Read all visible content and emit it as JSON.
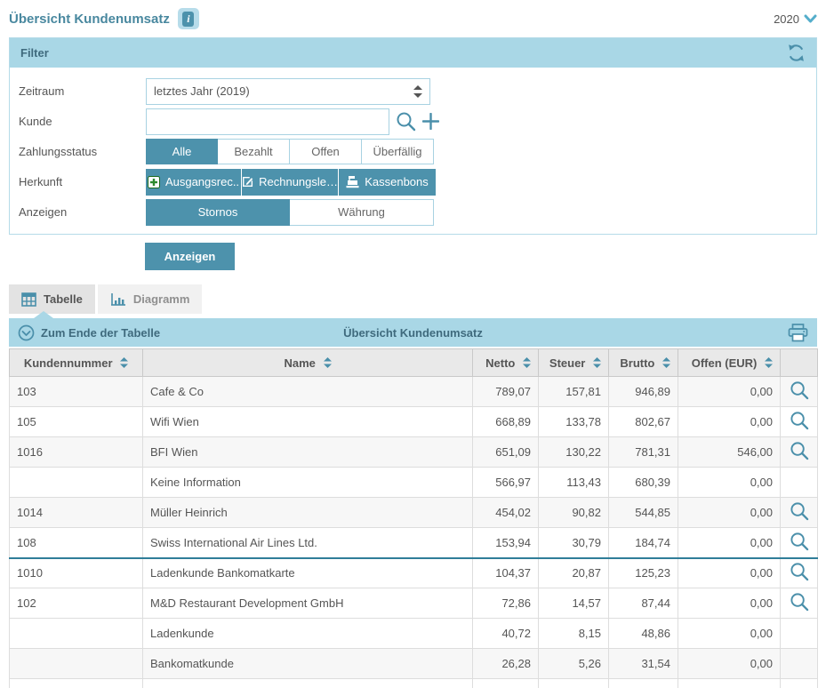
{
  "header": {
    "title": "Übersicht Kundenumsatz",
    "year": "2020"
  },
  "filter": {
    "title": "Filter",
    "zeitraum_label": "Zeitraum",
    "zeitraum_value": "letztes Jahr (2019)",
    "kunde_label": "Kunde",
    "kunde_value": "",
    "zahlungsstatus_label": "Zahlungsstatus",
    "zahlungsstatus_options": [
      "Alle",
      "Bezahlt",
      "Offen",
      "Überfällig"
    ],
    "zahlungsstatus_selected": "Alle",
    "herkunft_label": "Herkunft",
    "herkunft_buttons": [
      "Ausgangsrec..",
      "Rechnungsle…",
      "Kassenbons"
    ],
    "anzeigen_label": "Anzeigen",
    "anzeigen_options": [
      "Stornos",
      "Währung"
    ],
    "anzeigen_selected": "Stornos",
    "submit_label": "Anzeigen"
  },
  "tabs": {
    "tabelle": "Tabelle",
    "diagramm": "Diagramm",
    "active": "Tabelle"
  },
  "table": {
    "jump_to_end_label": "Zum Ende der Tabelle",
    "caption": "Übersicht Kundenumsatz",
    "columns": [
      "Kundennummer",
      "Name",
      "Netto",
      "Steuer",
      "Brutto",
      "Offen (EUR)"
    ],
    "rows": [
      {
        "kundennummer": "103",
        "name": "Cafe & Co",
        "netto": "789,07",
        "steuer": "157,81",
        "brutto": "946,89",
        "offen": "0,00"
      },
      {
        "kundennummer": "105",
        "name": "Wifi Wien",
        "netto": "668,89",
        "steuer": "133,78",
        "brutto": "802,67",
        "offen": "0,00"
      },
      {
        "kundennummer": "1016",
        "name": "BFI Wien",
        "netto": "651,09",
        "steuer": "130,22",
        "brutto": "781,31",
        "offen": "546,00"
      },
      {
        "kundennummer": "",
        "name": "Keine Information",
        "netto": "566,97",
        "steuer": "113,43",
        "brutto": "680,39",
        "offen": "0,00"
      },
      {
        "kundennummer": "1014",
        "name": "Müller Heinrich",
        "netto": "454,02",
        "steuer": "90,82",
        "brutto": "544,85",
        "offen": "0,00"
      },
      {
        "kundennummer": "108",
        "name": "Swiss International Air Lines Ltd.",
        "netto": "153,94",
        "steuer": "30,79",
        "brutto": "184,74",
        "offen": "0,00"
      },
      {
        "kundennummer": "1010",
        "name": "Ladenkunde Bankomatkarte",
        "netto": "104,37",
        "steuer": "20,87",
        "brutto": "125,23",
        "offen": "0,00"
      },
      {
        "kundennummer": "102",
        "name": "M&D Restaurant Development GmbH",
        "netto": "72,86",
        "steuer": "14,57",
        "brutto": "87,44",
        "offen": "0,00"
      },
      {
        "kundennummer": "",
        "name": "Ladenkunde",
        "netto": "40,72",
        "steuer": "8,15",
        "brutto": "48,86",
        "offen": "0,00"
      },
      {
        "kundennummer": "",
        "name": "Bankomatkunde",
        "netto": "26,28",
        "steuer": "5,26",
        "brutto": "31,54",
        "offen": "0,00"
      }
    ]
  },
  "colors": {
    "accent_teal": "#4d92ac",
    "light_blue_bar": "#a9d7e6",
    "panel_border": "#b5dbe8",
    "title_blue": "#49889f",
    "row_highlight_border": "#2f7d99",
    "green_plus": "#2e8b2e"
  }
}
